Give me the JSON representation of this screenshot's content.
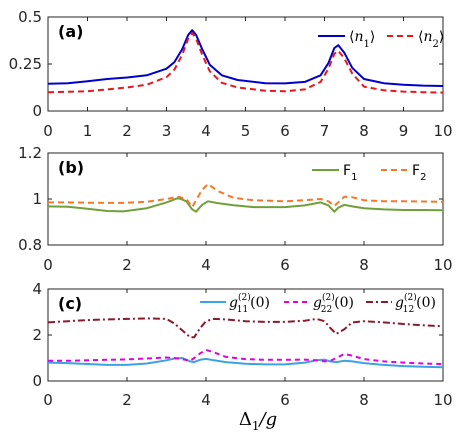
{
  "chart_data": [
    {
      "type": "line",
      "panel_label": "(a)",
      "xlim": [
        0,
        10
      ],
      "ylim": [
        0,
        0.5
      ],
      "xticks": [
        "0",
        "1",
        "2",
        "3",
        "4",
        "5",
        "6",
        "7",
        "8",
        "9",
        "10"
      ],
      "yticks": [
        "0",
        "0.25",
        "0.5"
      ],
      "legend_position": "top-right",
      "x": [
        0,
        0.5,
        1,
        1.5,
        2,
        2.5,
        3,
        3.2,
        3.4,
        3.55,
        3.65,
        3.75,
        3.9,
        4.1,
        4.4,
        4.8,
        5.5,
        6,
        6.5,
        6.9,
        7.1,
        7.25,
        7.35,
        7.5,
        7.7,
        8,
        8.5,
        9,
        9.5,
        10
      ],
      "series": [
        {
          "name_html": "⟨<tspan font-style='italic'>n</tspan><tspan baseline-shift='sub' font-size='10'>1</tspan>⟩",
          "color": "#0000cc",
          "dash": "",
          "values": [
            0.145,
            0.148,
            0.158,
            0.17,
            0.178,
            0.19,
            0.225,
            0.26,
            0.33,
            0.405,
            0.43,
            0.405,
            0.33,
            0.245,
            0.19,
            0.165,
            0.148,
            0.147,
            0.155,
            0.19,
            0.255,
            0.335,
            0.35,
            0.31,
            0.23,
            0.17,
            0.148,
            0.14,
            0.135,
            0.133
          ]
        },
        {
          "name_html": "⟨<tspan font-style='italic'>n</tspan><tspan baseline-shift='sub' font-size='10'>2</tspan>⟩",
          "color": "#e8171c",
          "dash": "6,4",
          "values": [
            0.1,
            0.102,
            0.105,
            0.115,
            0.125,
            0.14,
            0.18,
            0.22,
            0.3,
            0.385,
            0.415,
            0.385,
            0.3,
            0.21,
            0.15,
            0.125,
            0.108,
            0.105,
            0.115,
            0.155,
            0.225,
            0.305,
            0.32,
            0.28,
            0.2,
            0.13,
            0.11,
            0.103,
            0.1,
            0.098
          ]
        }
      ]
    },
    {
      "type": "line",
      "panel_label": "(b)",
      "xlim": [
        0,
        10
      ],
      "ylim": [
        0.8,
        1.2
      ],
      "xticks": [
        "0",
        "2",
        "4",
        "6",
        "8",
        "10"
      ],
      "yticks": [
        "0.8",
        "1",
        "1.2"
      ],
      "legend_position": "top-right",
      "x": [
        0,
        0.5,
        1,
        1.5,
        1.9,
        2.5,
        3,
        3.3,
        3.5,
        3.65,
        3.75,
        3.9,
        4.05,
        4.3,
        4.7,
        5.2,
        6,
        6.5,
        6.9,
        7.1,
        7.25,
        7.35,
        7.5,
        7.7,
        8,
        8.5,
        9,
        9.5,
        10
      ],
      "series": [
        {
          "name": "F1",
          "name_main": "F",
          "name_sub": "1",
          "color": "#70a03a",
          "dash": "",
          "values": [
            0.968,
            0.966,
            0.958,
            0.948,
            0.946,
            0.96,
            0.985,
            1.005,
            0.99,
            0.955,
            0.945,
            0.975,
            0.99,
            0.982,
            0.973,
            0.965,
            0.965,
            0.972,
            0.985,
            0.972,
            0.945,
            0.962,
            0.975,
            0.968,
            0.96,
            0.955,
            0.952,
            0.952,
            0.951
          ]
        },
        {
          "name": "F2",
          "name_main": "F",
          "name_sub": "2",
          "color": "#f4772a",
          "dash": "6,4",
          "values": [
            0.985,
            0.985,
            0.984,
            0.983,
            0.983,
            0.988,
            1.0,
            1.01,
            1.0,
            0.965,
            0.995,
            1.04,
            1.065,
            1.035,
            1.005,
            0.995,
            0.99,
            0.995,
            1.0,
            0.99,
            0.97,
            0.985,
            1.01,
            1.008,
            0.995,
            0.99,
            0.99,
            0.989,
            0.988
          ]
        }
      ]
    },
    {
      "type": "line",
      "panel_label": "(c)",
      "xlim": [
        0,
        10
      ],
      "ylim": [
        0,
        4
      ],
      "xticks": [
        "0",
        "2",
        "4",
        "6",
        "8",
        "10"
      ],
      "yticks": [
        "0",
        "2",
        "4"
      ],
      "legend_position": "top-right",
      "x": [
        0,
        0.5,
        1,
        1.5,
        2,
        2.5,
        3,
        3.2,
        3.4,
        3.6,
        3.7,
        3.85,
        4.0,
        4.2,
        4.5,
        5,
        5.5,
        6,
        6.5,
        6.8,
        7.0,
        7.15,
        7.3,
        7.5,
        7.7,
        8,
        8.5,
        9,
        9.5,
        10
      ],
      "series": [
        {
          "name_main": "g",
          "name_sub": "11",
          "name_sup": "(2)",
          "name_suffix": "(0)",
          "color": "#3aa3e0",
          "dash": "",
          "values": [
            0.8,
            0.78,
            0.74,
            0.7,
            0.7,
            0.76,
            0.9,
            0.98,
            1.0,
            0.85,
            0.82,
            0.92,
            0.96,
            0.9,
            0.82,
            0.75,
            0.72,
            0.72,
            0.8,
            0.9,
            0.93,
            0.85,
            0.82,
            0.88,
            0.85,
            0.78,
            0.7,
            0.65,
            0.62,
            0.6
          ]
        },
        {
          "name_main": "g",
          "name_sub": "22",
          "name_sup": "(2)",
          "name_suffix": "(0)",
          "color": "#e000e0",
          "dash": "5,4",
          "values": [
            0.88,
            0.88,
            0.9,
            0.92,
            0.94,
            0.98,
            1.02,
            1.0,
            0.95,
            0.88,
            1.0,
            1.2,
            1.35,
            1.25,
            1.05,
            0.95,
            0.92,
            0.92,
            0.93,
            0.9,
            0.85,
            0.88,
            1.0,
            1.18,
            1.1,
            0.95,
            0.85,
            0.8,
            0.76,
            0.74
          ]
        },
        {
          "name_main": "g",
          "name_sub": "12",
          "name_sup": "(2)",
          "name_suffix": "(0)",
          "color": "#8b1a2b",
          "dash": "7,3,2,3",
          "values": [
            2.55,
            2.6,
            2.65,
            2.68,
            2.7,
            2.72,
            2.7,
            2.5,
            2.2,
            1.9,
            1.9,
            2.3,
            2.6,
            2.7,
            2.68,
            2.6,
            2.57,
            2.57,
            2.62,
            2.7,
            2.6,
            2.3,
            2.05,
            2.25,
            2.55,
            2.6,
            2.55,
            2.48,
            2.42,
            2.38
          ]
        }
      ]
    }
  ],
  "xlabel_main": "Δ",
  "xlabel_sub": "1",
  "xlabel_suffix": "/g"
}
